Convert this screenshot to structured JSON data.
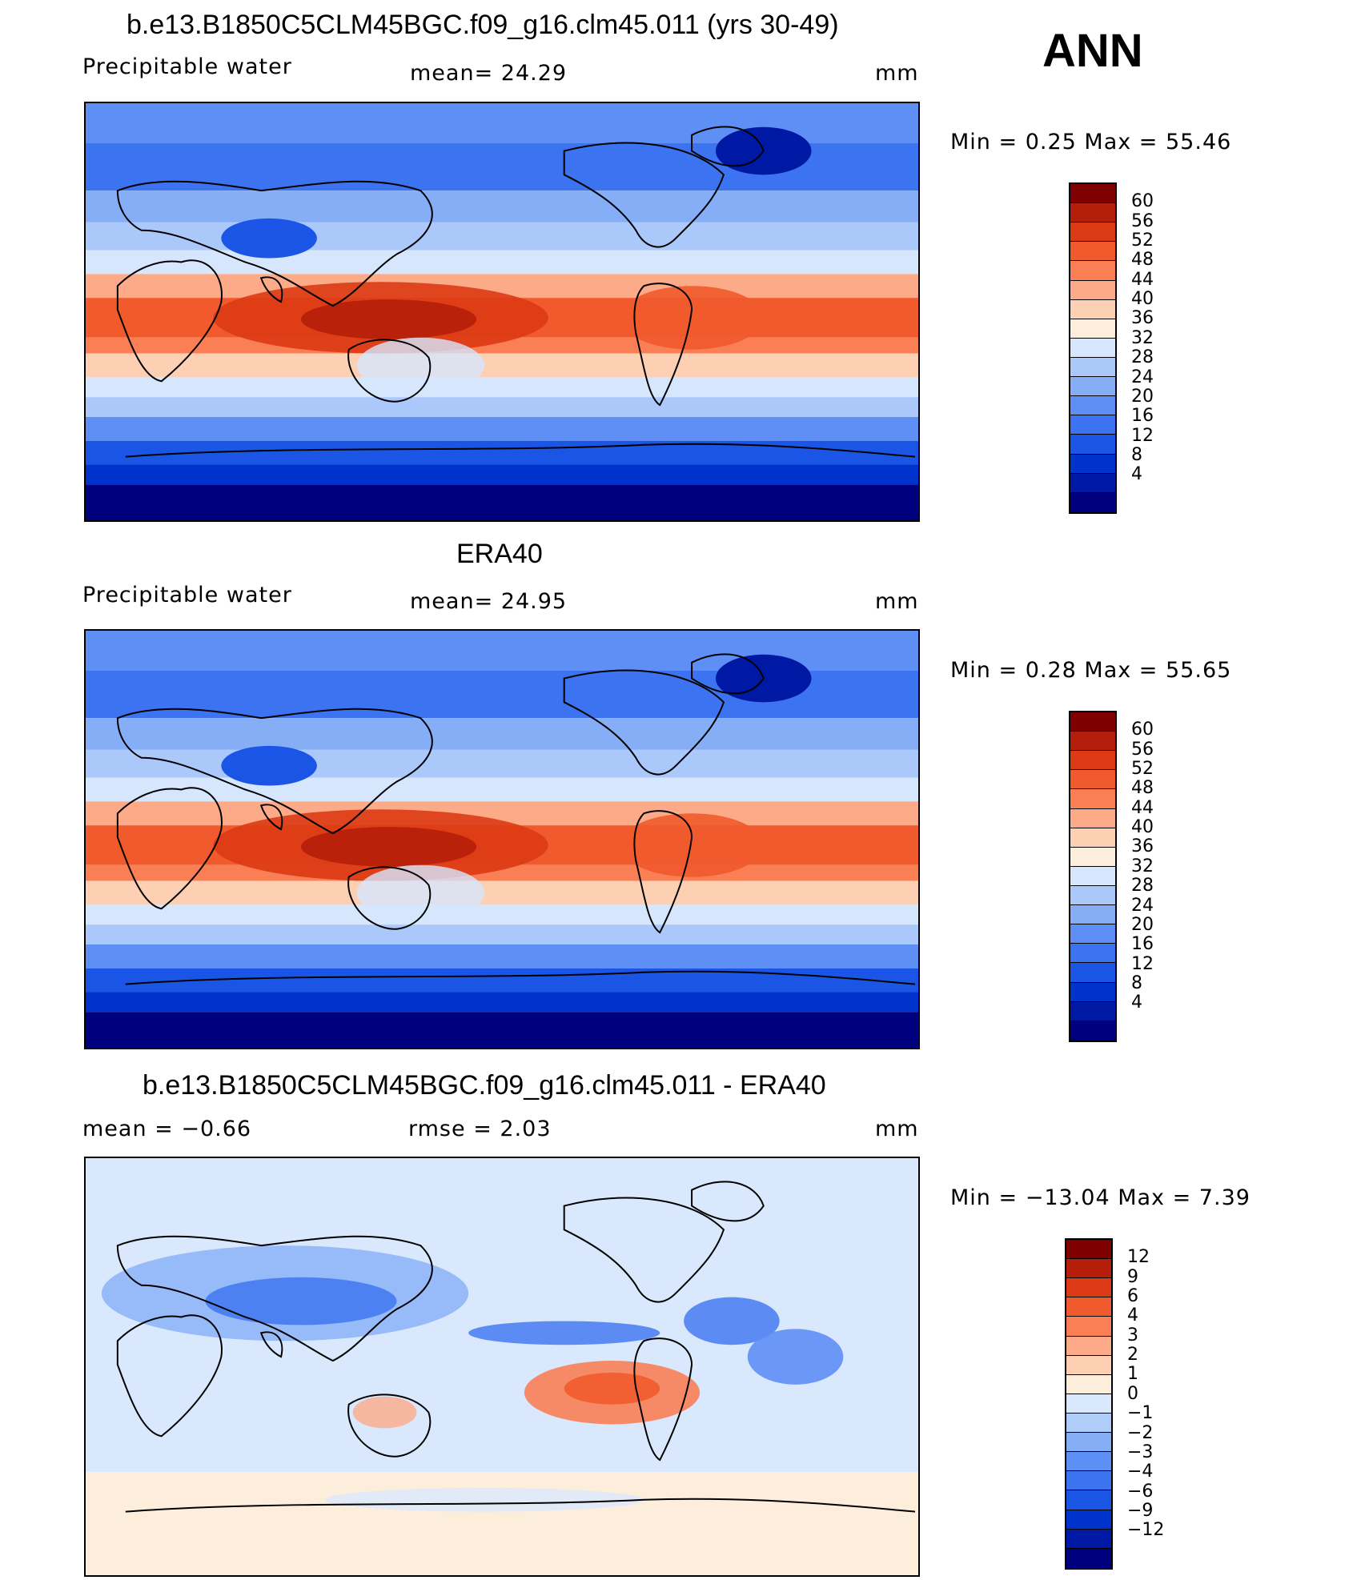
{
  "header": {
    "season": "ANN"
  },
  "colors": {
    "full_field": [
      "#00007f",
      "#0019a5",
      "#0033cc",
      "#1a55e6",
      "#3b73f0",
      "#5e8ff5",
      "#86aef7",
      "#aac8fa",
      "#d6e6fc",
      "#fdeedc",
      "#fdd0b4",
      "#fcaa88",
      "#fa7f55",
      "#f05a2c",
      "#dc3a14",
      "#b51e0a",
      "#7f0000"
    ],
    "difference": [
      "#00007f",
      "#0019a5",
      "#0033cc",
      "#1a55e6",
      "#3b73f0",
      "#5e8ff5",
      "#86aef7",
      "#b0cdfa",
      "#d9e8fc",
      "#fdeedc",
      "#fdd0b4",
      "#fcaa88",
      "#fa7f55",
      "#f05a2c",
      "#dc3a14",
      "#b51e0a",
      "#7f0000"
    ]
  },
  "panels": [
    {
      "title": "b.e13.B1850C5CLM45BGC.f09_g16.clm45.011 (yrs 30-49)",
      "variable": "Precipitable  water",
      "stat_text": "mean=   24.29",
      "units": "mm",
      "minmax_text": "Min  =     0.25  Max  =    55.46",
      "cbar_ticks": [
        "60",
        "56",
        "52",
        "48",
        "44",
        "40",
        "36",
        "32",
        "28",
        "24",
        "20",
        "16",
        "12",
        "8",
        "4"
      ],
      "palette": "full_field"
    },
    {
      "title": "ERA40",
      "variable": "Precipitable  water",
      "stat_text": "mean=   24.95",
      "units": "mm",
      "minmax_text": "Min  =     0.28  Max  =    55.65",
      "cbar_ticks": [
        "60",
        "56",
        "52",
        "48",
        "44",
        "40",
        "36",
        "32",
        "28",
        "24",
        "20",
        "16",
        "12",
        "8",
        "4"
      ],
      "palette": "full_field"
    },
    {
      "title": "b.e13.B1850C5CLM45BGC.f09_g16.clm45.011 - ERA40",
      "variable": "mean  =    −0.66",
      "stat_text": "rmse  =     2.03",
      "units": "mm",
      "minmax_text": "Min  = −13.04  Max  =      7.39",
      "cbar_ticks": [
        "12",
        "9",
        "6",
        "4",
        "3",
        "2",
        "1",
        "0",
        "−1",
        "−2",
        "−3",
        "−4",
        "−6",
        "−9",
        "−12"
      ],
      "palette": "difference"
    }
  ]
}
